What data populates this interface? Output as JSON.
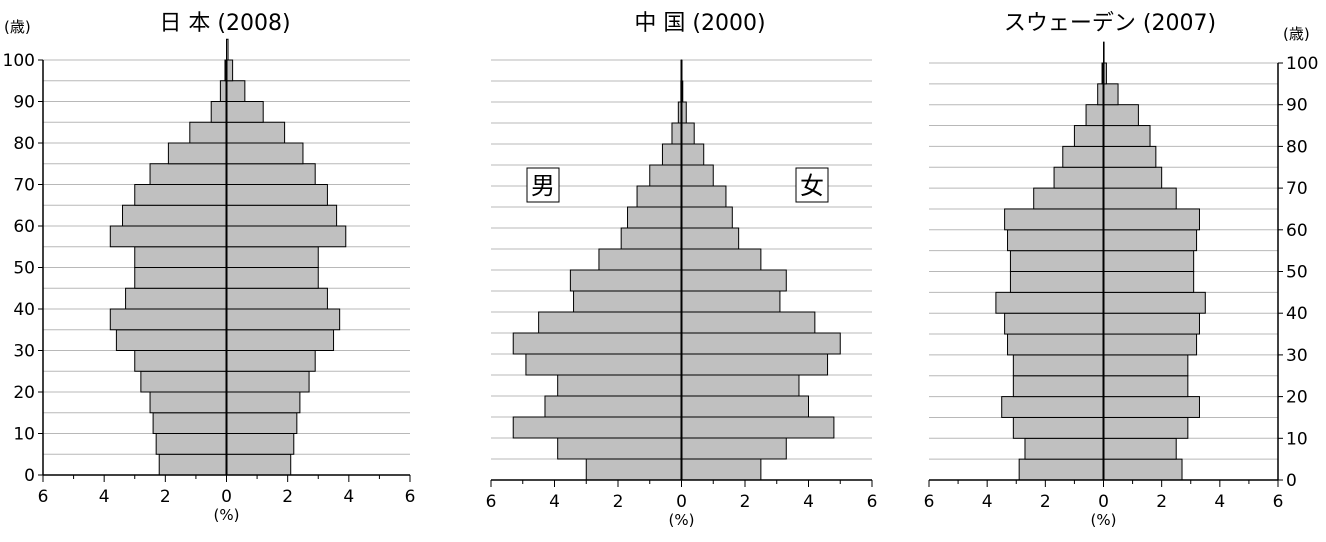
{
  "age_unit": "(歳)",
  "chart_data": [
    {
      "type": "bar",
      "title": "日 本 (2008)",
      "xlabel": "(%)",
      "ylabel": "(歳)",
      "xlim": [
        -6,
        6
      ],
      "ylim": [
        0,
        100
      ],
      "x_ticks": [
        "6",
        "4",
        "2",
        "0",
        "2",
        "4",
        "6"
      ],
      "y_ticks": [
        "0",
        "10",
        "20",
        "30",
        "40",
        "50",
        "60",
        "70",
        "80",
        "90",
        "100"
      ],
      "age_groups": [
        "0-4",
        "5-9",
        "10-14",
        "15-19",
        "20-24",
        "25-29",
        "30-34",
        "35-39",
        "40-44",
        "45-49",
        "50-54",
        "55-59",
        "60-64",
        "65-69",
        "70-74",
        "75-79",
        "80-84",
        "85-89",
        "90-94",
        "95-99",
        "100+"
      ],
      "series": [
        {
          "name": "",
          "values": [
            2.2,
            2.3,
            2.4,
            2.5,
            2.8,
            3.0,
            3.6,
            3.8,
            3.3,
            3.0,
            3.0,
            3.8,
            3.4,
            3.0,
            2.5,
            1.9,
            1.2,
            0.5,
            0.2,
            0.05,
            0.0
          ]
        },
        {
          "name": "",
          "values": [
            2.1,
            2.2,
            2.3,
            2.4,
            2.7,
            2.9,
            3.5,
            3.7,
            3.3,
            3.0,
            3.0,
            3.9,
            3.6,
            3.3,
            2.9,
            2.5,
            1.9,
            1.2,
            0.6,
            0.2,
            0.05
          ]
        }
      ],
      "grid": true
    },
    {
      "type": "bar",
      "title": "中 国 (2000)",
      "xlabel": "(%)",
      "xlim": [
        -6,
        6
      ],
      "ylim": [
        0,
        100
      ],
      "x_ticks": [
        "6",
        "4",
        "2",
        "0",
        "2",
        "4",
        "6"
      ],
      "male_label": "男",
      "female_label": "女",
      "age_groups": [
        "0-4",
        "5-9",
        "10-14",
        "15-19",
        "20-24",
        "25-29",
        "30-34",
        "35-39",
        "40-44",
        "45-49",
        "50-54",
        "55-59",
        "60-64",
        "65-69",
        "70-74",
        "75-79",
        "80-84",
        "85-89",
        "90-94",
        "95-99",
        "100+"
      ],
      "series": [
        {
          "name": "男",
          "values": [
            3.0,
            3.9,
            5.3,
            4.3,
            3.9,
            4.9,
            5.3,
            4.5,
            3.4,
            3.5,
            2.6,
            1.9,
            1.7,
            1.4,
            1.0,
            0.6,
            0.3,
            0.1,
            0.02,
            0.01,
            0.0
          ]
        },
        {
          "name": "女",
          "values": [
            2.5,
            3.3,
            4.8,
            4.0,
            3.7,
            4.6,
            5.0,
            4.2,
            3.1,
            3.3,
            2.5,
            1.8,
            1.6,
            1.4,
            1.0,
            0.7,
            0.4,
            0.15,
            0.04,
            0.01,
            0.0
          ]
        }
      ],
      "grid": true
    },
    {
      "type": "bar",
      "title": "スウェーデン (2007)",
      "xlabel": "(%)",
      "ylabel": "(歳)",
      "xlim": [
        -6,
        6
      ],
      "ylim": [
        0,
        100
      ],
      "x_ticks": [
        "6",
        "4",
        "2",
        "0",
        "2",
        "4",
        "6"
      ],
      "y_ticks": [
        "0",
        "10",
        "20",
        "30",
        "40",
        "50",
        "60",
        "70",
        "80",
        "90",
        "100"
      ],
      "age_groups": [
        "0-4",
        "5-9",
        "10-14",
        "15-19",
        "20-24",
        "25-29",
        "30-34",
        "35-39",
        "40-44",
        "45-49",
        "50-54",
        "55-59",
        "60-64",
        "65-69",
        "70-74",
        "75-79",
        "80-84",
        "85-89",
        "90-94",
        "95-99",
        "100+"
      ],
      "series": [
        {
          "name": "",
          "values": [
            2.9,
            2.7,
            3.1,
            3.5,
            3.1,
            3.1,
            3.3,
            3.4,
            3.7,
            3.2,
            3.2,
            3.3,
            3.4,
            2.4,
            1.7,
            1.4,
            1.0,
            0.6,
            0.2,
            0.05,
            0.0
          ]
        },
        {
          "name": "",
          "values": [
            2.7,
            2.5,
            2.9,
            3.3,
            2.9,
            2.9,
            3.2,
            3.3,
            3.5,
            3.1,
            3.1,
            3.2,
            3.3,
            2.5,
            2.0,
            1.8,
            1.6,
            1.2,
            0.5,
            0.1,
            0.02
          ]
        }
      ],
      "grid": true
    }
  ]
}
